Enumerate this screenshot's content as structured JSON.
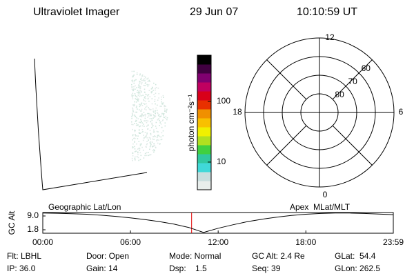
{
  "header": {
    "instrument": "Ultraviolet Imager",
    "date": "29 Jun 07",
    "time": "10:10:59 UT"
  },
  "colorbar": {
    "label": "photon cm⁻²s⁻¹",
    "log": true,
    "lim": [
      3.5,
      577
    ],
    "ticks": [
      10,
      100
    ],
    "colors": [
      "#e8eeec",
      "#c8dede",
      "#40d8d8",
      "#30c8a0",
      "#40d040",
      "#b0e020",
      "#f0f000",
      "#f8c000",
      "#f09000",
      "#e83000",
      "#d8001a",
      "#c00060",
      "#800070",
      "#400040",
      "#000000"
    ]
  },
  "polar": {
    "mlt_labels": [
      "12",
      "18",
      "6",
      "0"
    ],
    "lat_rings": [
      60,
      70,
      80
    ]
  },
  "altitude_plot": {
    "y_label": "GC Alt",
    "left_label": "Geographic Lat/Lon",
    "right_label": "Apex  MLat/MLT",
    "xlim": [
      0,
      23.983
    ],
    "ylim": [
      0,
      10.8
    ],
    "xticks": [
      {
        "value": 0,
        "label": "00:00"
      },
      {
        "value": 6,
        "label": "06:00"
      },
      {
        "value": 12,
        "label": "12:00"
      },
      {
        "value": 18,
        "label": "18:00"
      },
      {
        "value": 23.983,
        "label": "23:59"
      }
    ],
    "yticks": [
      {
        "value": 9.0,
        "label": "9.0"
      },
      1.8
    ],
    "x": [
      0,
      1,
      2,
      3,
      4,
      5,
      6,
      7,
      8,
      9,
      10,
      11,
      12,
      13,
      14,
      15,
      16,
      17,
      18,
      19,
      20,
      21,
      22,
      23,
      23.983
    ],
    "values": [
      10.5,
      10.4,
      10.2,
      9.9,
      9.4,
      8.8,
      8.0,
      7.1,
      6.0,
      4.7,
      3.0,
      0.4,
      2.6,
      4.4,
      6.0,
      7.3,
      8.4,
      9.3,
      9.9,
      10.3,
      10.5,
      10.5,
      10.3,
      10.0,
      9.7
    ],
    "current_time": 10.183,
    "current_color": "#e00000"
  },
  "footer": {
    "rows": [
      [
        "Flt: LBHL",
        "Door: Open",
        "Mode: Normal",
        "GC Alt: 2.4 Re",
        "GLat:  54.4"
      ],
      [
        "IP: 36.0",
        "Gain: 14",
        "Dsp:    1.5",
        "Seq: 39",
        "GLon: 262.5"
      ]
    ]
  }
}
